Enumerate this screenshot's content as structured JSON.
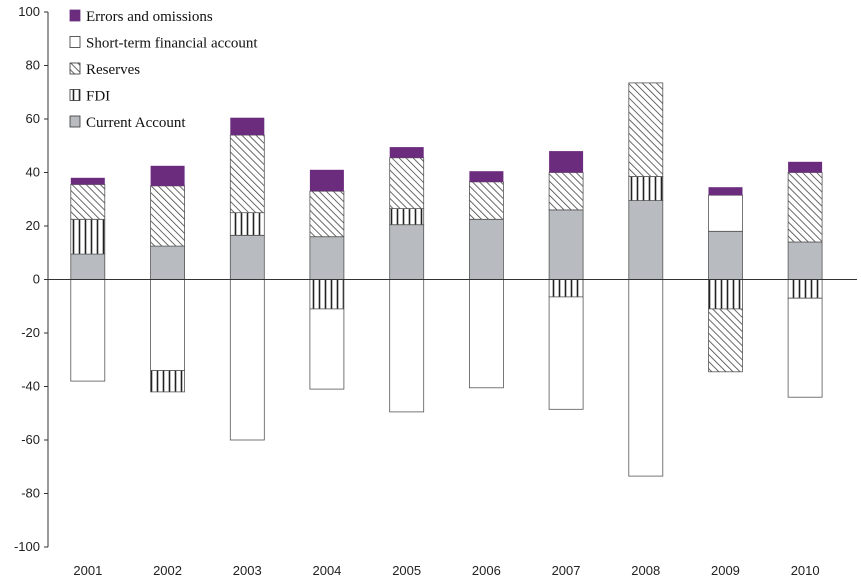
{
  "chart_data": {
    "type": "bar",
    "stacked": true,
    "categories": [
      "2001",
      "2002",
      "2003",
      "2004",
      "2005",
      "2006",
      "2007",
      "2008",
      "2009",
      "2010"
    ],
    "ylim": [
      -100,
      100
    ],
    "yticks": [
      100,
      80,
      60,
      40,
      20,
      0,
      -20,
      -40,
      -60,
      -80,
      -100
    ],
    "grid": false,
    "legend_position": "top-left",
    "series": [
      {
        "name": "Current Account",
        "pattern": "gray-solid",
        "fill": "#b8bcc0",
        "values": [
          9.5,
          12.5,
          16.5,
          16,
          20.5,
          22.5,
          26,
          29.5,
          18,
          14
        ]
      },
      {
        "name": "FDI",
        "pattern": "vertical-stripes",
        "values": [
          13,
          0,
          8.5,
          -11,
          6,
          0,
          -6.5,
          9,
          -11,
          -7
        ]
      },
      {
        "name": "Reserves",
        "pattern": "diagonal-hatch",
        "values": [
          13,
          22.5,
          29,
          17,
          19,
          14,
          14,
          35,
          -23.5,
          26
        ]
      },
      {
        "name": "Short-term financial account",
        "pattern": "white",
        "values": [
          -38,
          -34,
          -60,
          -30,
          -49.5,
          -40.5,
          -42,
          -73.5,
          13.5,
          -37
        ]
      },
      {
        "name": "Errors and omissions",
        "pattern": "purple-solid",
        "fill": "#6b2c7e",
        "values": [
          2.5,
          7.5,
          6.5,
          8,
          4,
          4,
          8,
          0,
          3,
          4
        ]
      },
      {
        "name": "FDI",
        "pattern": "vertical-stripes",
        "legend": false,
        "values": [
          0,
          -8,
          0,
          0,
          0,
          0,
          0,
          0,
          0,
          0
        ]
      }
    ],
    "legend": [
      {
        "name": "Errors and omissions",
        "pattern": "purple-solid"
      },
      {
        "name": "Short-term financial account",
        "pattern": "white"
      },
      {
        "name": "Reserves",
        "pattern": "diagonal-hatch"
      },
      {
        "name": "FDI",
        "pattern": "vertical-stripes"
      },
      {
        "name": "Current Account",
        "pattern": "gray-solid"
      }
    ]
  }
}
